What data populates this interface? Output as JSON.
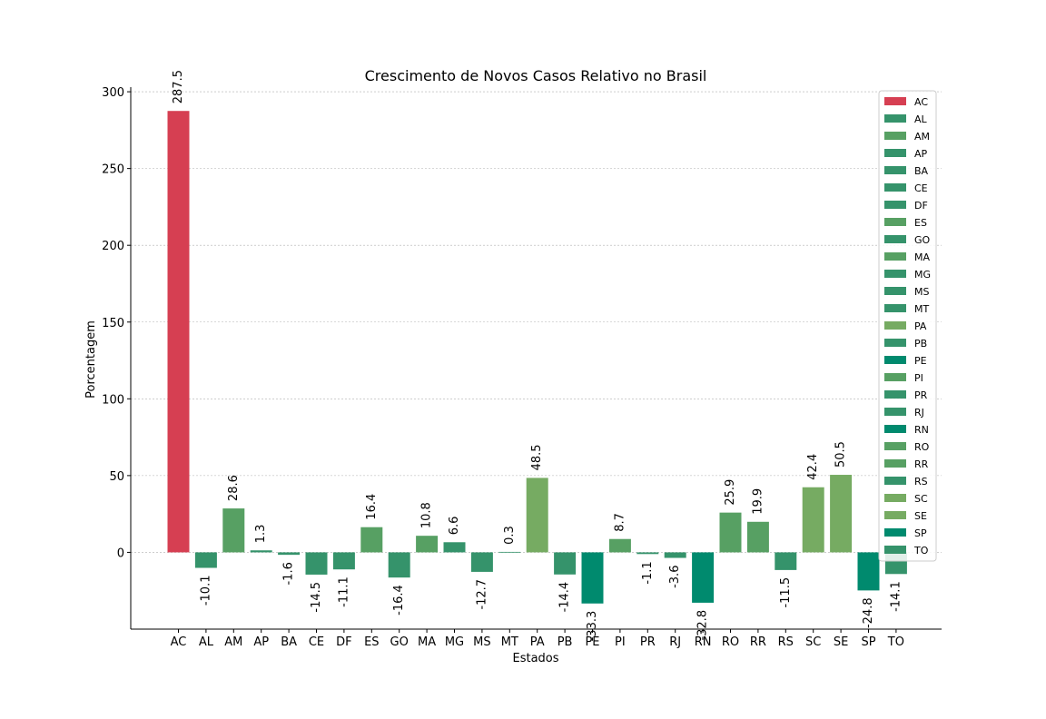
{
  "chart_data": {
    "type": "bar",
    "title": "Crescimento de Novos Casos Relativo no Brasil",
    "xlabel": "Estados",
    "ylabel": "Porcentagem",
    "ylim": [
      -50,
      303
    ],
    "yticks": [
      0,
      50,
      100,
      150,
      200,
      250,
      300
    ],
    "grid": "horizontal dashed",
    "legend_position": "right",
    "categories": [
      "AC",
      "AL",
      "AM",
      "AP",
      "BA",
      "CE",
      "DF",
      "ES",
      "GO",
      "MA",
      "MG",
      "MS",
      "MT",
      "PA",
      "PB",
      "PE",
      "PI",
      "PR",
      "RJ",
      "RN",
      "RO",
      "RR",
      "RS",
      "SC",
      "SE",
      "SP",
      "TO"
    ],
    "values": [
      287.5,
      -10.1,
      28.6,
      1.3,
      -1.6,
      -14.5,
      -11.1,
      16.4,
      -16.4,
      10.8,
      6.6,
      -12.7,
      0.3,
      48.5,
      -14.4,
      -33.3,
      8.7,
      -1.1,
      -3.6,
      -32.8,
      25.9,
      19.9,
      -11.5,
      42.4,
      50.5,
      -24.8,
      -14.1
    ],
    "labels": [
      "287.5",
      "-10.1",
      "28.6",
      "1.3",
      "-1.6",
      "-14.5",
      "-11.1",
      "16.4",
      "-16.4",
      "10.8",
      "6.6",
      "-12.7",
      "0.3",
      "48.5",
      "-14.4",
      "-33.3",
      "8.7",
      "-1.1",
      "-3.6",
      "-32.8",
      "25.9",
      "19.9",
      "-11.5",
      "42.4",
      "50.5",
      "-24.8",
      "-14.1"
    ],
    "colors": [
      "#d63f52",
      "#35936b",
      "#57a063",
      "#35936b",
      "#35936b",
      "#35936b",
      "#35936b",
      "#57a063",
      "#35936b",
      "#57a063",
      "#35936b",
      "#35936b",
      "#35936b",
      "#76ab62",
      "#35936b",
      "#008a6e",
      "#57a063",
      "#35936b",
      "#35936b",
      "#008a6e",
      "#57a063",
      "#57a063",
      "#35936b",
      "#76ab62",
      "#76ab62",
      "#008a6e",
      "#35936b"
    ]
  }
}
